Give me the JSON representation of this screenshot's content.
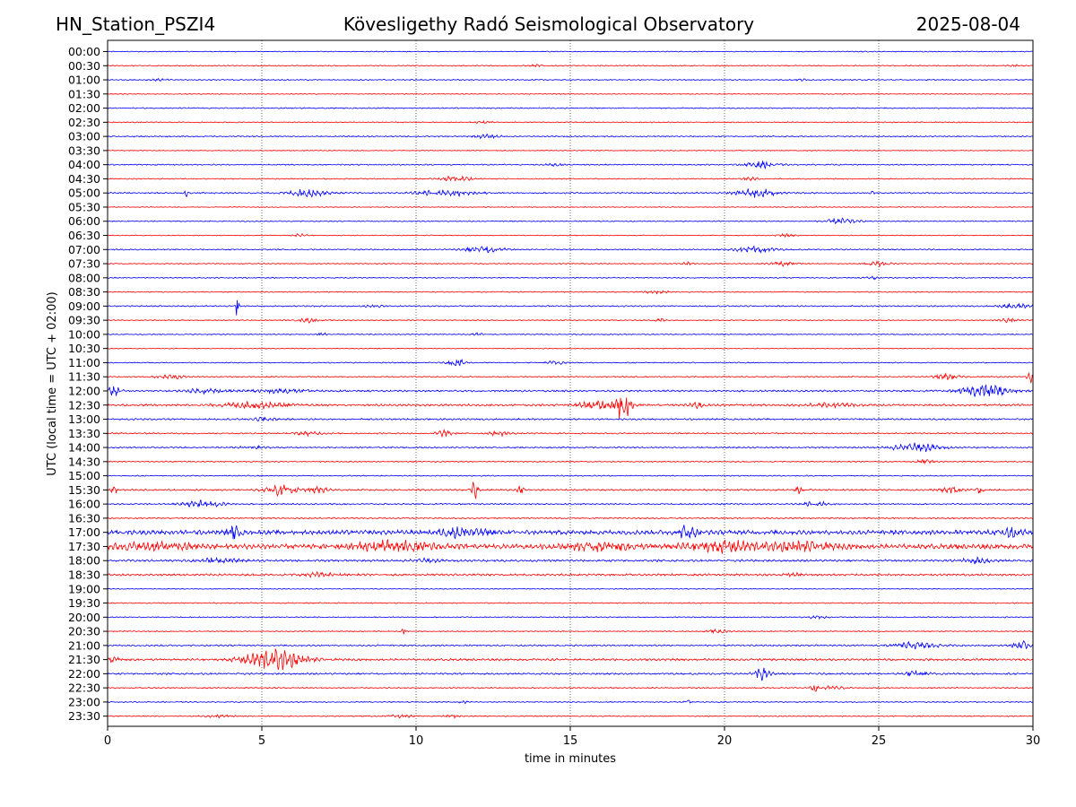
{
  "header": {
    "station": "HN_Station_PSZI4",
    "title": "Kövesligethy Radó Seismological Observatory",
    "date": "2025-08-04"
  },
  "chart_data": {
    "type": "line",
    "title": "Kövesligethy Radó Seismological Observatory",
    "xlabel": "time in minutes",
    "ylabel": "UTC (local time = UTC + 02:00)",
    "xlim": [
      0,
      30
    ],
    "x_ticks": [
      0,
      5,
      10,
      15,
      20,
      25,
      30
    ],
    "vertical_grid": true,
    "trace_colors": [
      "#0000ff",
      "#ff0000"
    ],
    "rows": [
      "00:00",
      "00:30",
      "01:00",
      "01:30",
      "02:00",
      "02:30",
      "03:00",
      "03:30",
      "04:00",
      "04:30",
      "05:00",
      "05:30",
      "06:00",
      "06:30",
      "07:00",
      "07:30",
      "08:00",
      "08:30",
      "09:00",
      "09:30",
      "10:00",
      "10:30",
      "11:00",
      "11:30",
      "12:00",
      "12:30",
      "13:00",
      "13:30",
      "14:00",
      "14:30",
      "15:00",
      "15:30",
      "16:00",
      "16:30",
      "17:00",
      "17:30",
      "18:00",
      "18:30",
      "19:00",
      "19:30",
      "20:00",
      "20:30",
      "21:00",
      "21:30",
      "22:00",
      "22:30",
      "23:00",
      "23:30"
    ],
    "noise": [
      0.05,
      0.06,
      0.06,
      0.05,
      0.06,
      0.06,
      0.07,
      0.05,
      0.07,
      0.06,
      0.08,
      0.05,
      0.06,
      0.05,
      0.07,
      0.06,
      0.06,
      0.06,
      0.07,
      0.06,
      0.06,
      0.05,
      0.06,
      0.07,
      0.1,
      0.12,
      0.09,
      0.08,
      0.08,
      0.07,
      0.06,
      0.09,
      0.08,
      0.08,
      0.25,
      0.28,
      0.12,
      0.12,
      0.05,
      0.06,
      0.06,
      0.06,
      0.09,
      0.12,
      0.1,
      0.07,
      0.06,
      0.06
    ],
    "bursts": [
      {
        "row": "00:30",
        "events": [
          [
            13.9,
            0.4,
            0.1
          ],
          [
            29.4,
            0.4,
            0.1
          ]
        ]
      },
      {
        "row": "01:00",
        "events": [
          [
            1.7,
            0.6,
            0.1
          ],
          [
            22.5,
            0.4,
            0.1
          ]
        ]
      },
      {
        "row": "02:30",
        "events": [
          [
            12.2,
            0.5,
            0.15
          ]
        ]
      },
      {
        "row": "03:00",
        "events": [
          [
            12.3,
            0.8,
            0.2
          ]
        ]
      },
      {
        "row": "04:00",
        "events": [
          [
            14.5,
            0.5,
            0.15
          ],
          [
            21.2,
            1.0,
            0.35
          ]
        ]
      },
      {
        "row": "04:30",
        "events": [
          [
            11.3,
            1.0,
            0.3
          ],
          [
            20.8,
            0.5,
            0.2
          ]
        ]
      },
      {
        "row": "05:00",
        "events": [
          [
            2.55,
            0.1,
            0.4
          ],
          [
            6.5,
            1.2,
            0.4
          ],
          [
            11.0,
            1.8,
            0.35
          ],
          [
            21.0,
            1.2,
            0.55
          ],
          [
            24.8,
            0.1,
            0.2
          ]
        ]
      },
      {
        "row": "06:00",
        "events": [
          [
            23.8,
            1.0,
            0.3
          ]
        ]
      },
      {
        "row": "06:30",
        "events": [
          [
            6.2,
            0.5,
            0.15
          ],
          [
            22.0,
            0.6,
            0.15
          ]
        ]
      },
      {
        "row": "07:00",
        "events": [
          [
            12.2,
            1.2,
            0.4
          ],
          [
            21.0,
            1.2,
            0.4
          ]
        ]
      },
      {
        "row": "07:30",
        "events": [
          [
            18.8,
            0.3,
            0.2
          ],
          [
            21.9,
            0.8,
            0.25
          ],
          [
            25.0,
            0.8,
            0.25
          ]
        ]
      },
      {
        "row": "08:00",
        "events": [
          [
            24.8,
            0.4,
            0.15
          ]
        ]
      },
      {
        "row": "08:30",
        "events": [
          [
            17.8,
            0.7,
            0.2
          ]
        ]
      },
      {
        "row": "09:00",
        "events": [
          [
            4.2,
            0.1,
            1.5
          ],
          [
            8.6,
            0.6,
            0.15
          ],
          [
            29.4,
            1.0,
            0.25
          ]
        ]
      },
      {
        "row": "09:30",
        "events": [
          [
            6.5,
            0.6,
            0.25
          ],
          [
            17.9,
            0.3,
            0.25
          ],
          [
            29.2,
            0.6,
            0.2
          ]
        ]
      },
      {
        "row": "10:00",
        "events": [
          [
            6.9,
            0.3,
            0.3
          ],
          [
            12.0,
            0.3,
            0.15
          ]
        ]
      },
      {
        "row": "11:00",
        "events": [
          [
            11.3,
            0.5,
            0.45
          ],
          [
            14.5,
            0.6,
            0.2
          ]
        ]
      },
      {
        "row": "11:30",
        "events": [
          [
            2.0,
            0.8,
            0.3
          ],
          [
            27.2,
            0.8,
            0.3
          ],
          [
            29.9,
            0.2,
            0.7
          ]
        ]
      },
      {
        "row": "12:00",
        "events": [
          [
            0.2,
            0.4,
            0.6
          ],
          [
            3.2,
            1.2,
            0.25
          ],
          [
            5.5,
            1.8,
            0.2
          ],
          [
            28.5,
            1.5,
            0.7
          ]
        ]
      },
      {
        "row": "12:30",
        "events": [
          [
            4.8,
            2.0,
            0.35
          ],
          [
            16.7,
            0.5,
            1.6
          ],
          [
            16.0,
            1.5,
            0.4
          ],
          [
            19.1,
            0.5,
            0.3
          ],
          [
            23.5,
            1.5,
            0.2
          ]
        ]
      },
      {
        "row": "13:00",
        "events": [
          [
            5.1,
            0.6,
            0.25
          ]
        ]
      },
      {
        "row": "13:30",
        "events": [
          [
            6.5,
            0.8,
            0.2
          ],
          [
            10.9,
            0.5,
            0.35
          ],
          [
            12.7,
            0.6,
            0.3
          ]
        ]
      },
      {
        "row": "14:00",
        "events": [
          [
            4.7,
            0.8,
            0.15
          ],
          [
            26.2,
            1.5,
            0.5
          ]
        ]
      },
      {
        "row": "14:30",
        "events": [
          [
            26.5,
            0.6,
            0.2
          ]
        ]
      },
      {
        "row": "15:30",
        "events": [
          [
            0.2,
            0.2,
            0.5
          ],
          [
            5.6,
            1.0,
            0.55
          ],
          [
            6.8,
            0.8,
            0.3
          ],
          [
            11.9,
            0.2,
            1.1
          ],
          [
            13.4,
            0.2,
            0.5
          ],
          [
            22.4,
            0.2,
            0.4
          ],
          [
            27.4,
            0.8,
            0.35
          ],
          [
            28.3,
            0.2,
            0.5
          ]
        ]
      },
      {
        "row": "16:00",
        "events": [
          [
            3.1,
            1.2,
            0.4
          ],
          [
            23.0,
            0.8,
            0.3
          ]
        ]
      },
      {
        "row": "17:00",
        "events": [
          [
            4.1,
            0.4,
            0.7
          ],
          [
            11.5,
            1.5,
            0.45
          ],
          [
            18.8,
            0.5,
            0.8
          ],
          [
            29.2,
            0.8,
            0.5
          ]
        ]
      },
      {
        "row": "17:30",
        "events": [
          [
            1.5,
            2.5,
            0.35
          ],
          [
            9.2,
            2.5,
            0.55
          ],
          [
            16.0,
            2.0,
            0.4
          ],
          [
            20.0,
            2.5,
            0.5
          ],
          [
            22.5,
            2.0,
            0.4
          ]
        ]
      },
      {
        "row": "18:00",
        "events": [
          [
            3.5,
            1.5,
            0.25
          ],
          [
            10.3,
            0.8,
            0.2
          ],
          [
            28.2,
            1.0,
            0.3
          ]
        ]
      },
      {
        "row": "18:30",
        "events": [
          [
            6.8,
            1.2,
            0.2
          ],
          [
            22.2,
            0.6,
            0.15
          ]
        ]
      },
      {
        "row": "20:00",
        "events": [
          [
            23.0,
            0.6,
            0.15
          ]
        ]
      },
      {
        "row": "20:30",
        "events": [
          [
            9.6,
            0.2,
            0.3
          ],
          [
            19.8,
            0.6,
            0.2
          ]
        ]
      },
      {
        "row": "21:00",
        "events": [
          [
            26.2,
            1.5,
            0.35
          ],
          [
            29.6,
            0.5,
            0.5
          ]
        ]
      },
      {
        "row": "21:30",
        "events": [
          [
            0.2,
            0.5,
            0.3
          ],
          [
            5.4,
            1.8,
            1.2
          ]
        ]
      },
      {
        "row": "22:00",
        "events": [
          [
            21.2,
            0.5,
            0.7
          ],
          [
            26.2,
            0.8,
            0.3
          ]
        ]
      },
      {
        "row": "22:30",
        "events": [
          [
            22.9,
            0.2,
            0.6
          ],
          [
            23.5,
            0.7,
            0.2
          ]
        ]
      },
      {
        "row": "23:00",
        "events": [
          [
            11.5,
            0.3,
            0.15
          ],
          [
            18.8,
            0.2,
            0.2
          ]
        ]
      },
      {
        "row": "23:30",
        "events": [
          [
            3.6,
            0.8,
            0.15
          ],
          [
            9.5,
            0.8,
            0.15
          ],
          [
            11.2,
            0.5,
            0.15
          ]
        ]
      }
    ]
  }
}
